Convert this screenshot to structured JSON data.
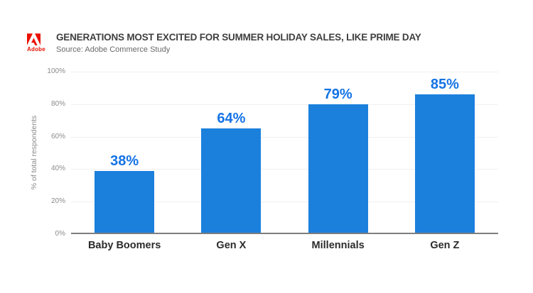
{
  "header": {
    "logo_text": "Adobe",
    "title": "GENERATIONS MOST EXCITED FOR SUMMER HOLIDAY SALES, LIKE PRIME DAY",
    "source": "Source: Adobe Commerce Study"
  },
  "chart_data": {
    "type": "bar",
    "title": "GENERATIONS MOST EXCITED FOR SUMMER HOLIDAY SALES, LIKE PRIME DAY",
    "subtitle": "Source: Adobe Commerce Study",
    "categories": [
      "Baby Boomers",
      "Gen X",
      "Millennials",
      "Gen Z"
    ],
    "values": [
      38,
      64,
      79,
      85
    ],
    "value_labels": [
      "38%",
      "64%",
      "79%",
      "85%"
    ],
    "xlabel": "",
    "ylabel": "% of total respondents",
    "ylim": [
      0,
      100
    ],
    "yticks": [
      0,
      20,
      40,
      60,
      80,
      100
    ],
    "ytick_labels": [
      "0%",
      "20%",
      "40%",
      "60%",
      "80%",
      "100%"
    ],
    "grid": true,
    "legend": "none",
    "colors": {
      "bar": "#1B80DC",
      "value_label": "#1473E6",
      "gridline": "#F0F0F0",
      "axis_line": "#7E7E7E",
      "tick_label": "#8A8A8A",
      "category_label": "#2B2B2B"
    }
  },
  "branding": {
    "adobe_red": "#EB1000"
  }
}
